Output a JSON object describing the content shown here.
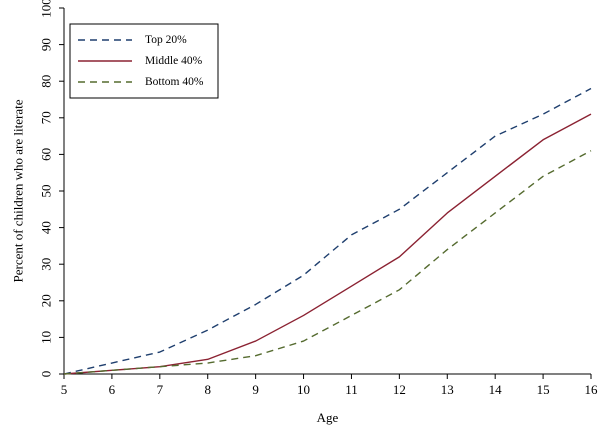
{
  "chart_data": {
    "type": "line",
    "title": "",
    "xlabel": "Age",
    "ylabel": "Percent of children who are literate",
    "x": [
      5,
      6,
      7,
      8,
      9,
      10,
      11,
      12,
      13,
      14,
      15,
      16
    ],
    "xlim": [
      5,
      16
    ],
    "ylim": [
      0,
      100
    ],
    "xticks": [
      "5",
      "6",
      "7",
      "8",
      "9",
      "10",
      "11",
      "12",
      "13",
      "14",
      "15",
      "16"
    ],
    "yticks": [
      "0",
      "10",
      "20",
      "30",
      "40",
      "50",
      "60",
      "70",
      "80",
      "90",
      "100"
    ],
    "grid": false,
    "legend_position": "top-left",
    "series": [
      {
        "name": "Top 20%",
        "color": "#1f3f6e",
        "dash": "dashed",
        "values": [
          0,
          3,
          6,
          12,
          19,
          27,
          38,
          45,
          55,
          65,
          71,
          78
        ]
      },
      {
        "name": "Middle 40%",
        "color": "#8b2232",
        "dash": "solid",
        "values": [
          0,
          1,
          2,
          4,
          9,
          16,
          24,
          32,
          44,
          54,
          64,
          71
        ]
      },
      {
        "name": "Bottom 40%",
        "color": "#556b2f",
        "dash": "dashed",
        "values": [
          0,
          1,
          2,
          3,
          5,
          9,
          16,
          23,
          34,
          44,
          54,
          61
        ]
      }
    ]
  }
}
